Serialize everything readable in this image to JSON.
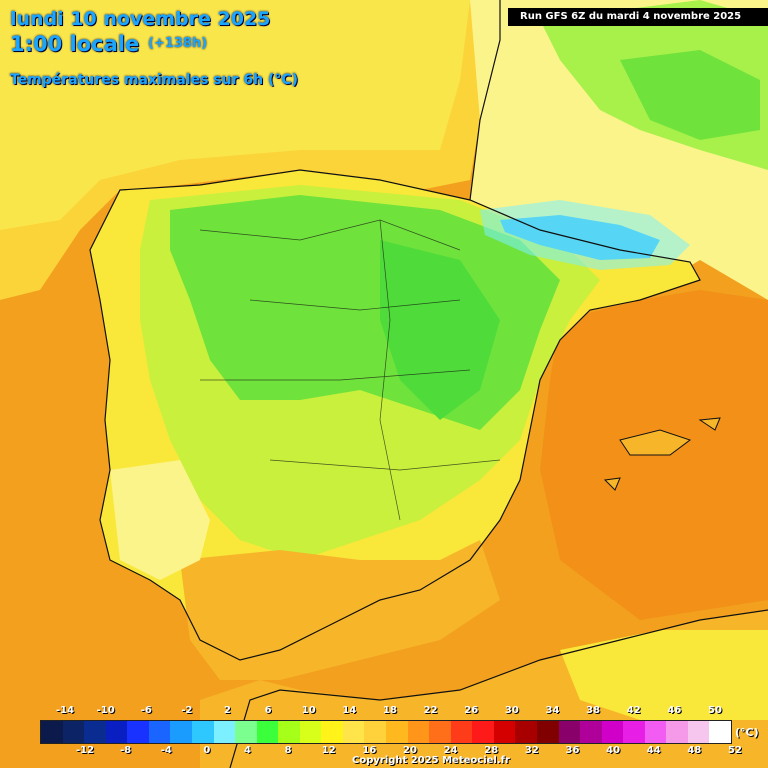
{
  "header": {
    "date": "lundi 10 novembre 2025",
    "time": "1:00 locale",
    "offset": "(+138h)",
    "subtitle": "Températures maximales sur 6h (°C)",
    "run": "Run GFS 6Z du mardi 4 novembre 2025"
  },
  "legend": {
    "unit": "(°C)",
    "top_labels": [
      "-14",
      "-10",
      "-6",
      "-2",
      "2",
      "6",
      "10",
      "14",
      "18",
      "22",
      "26",
      "30",
      "34",
      "38",
      "42",
      "46",
      "50"
    ],
    "bottom_labels": [
      "-12",
      "-8",
      "-4",
      "0",
      "4",
      "8",
      "12",
      "16",
      "20",
      "24",
      "28",
      "32",
      "36",
      "40",
      "44",
      "48",
      "52"
    ],
    "colors": [
      "#0b1a4a",
      "#0c2466",
      "#0a2b90",
      "#0a1fc2",
      "#1a32ff",
      "#1a64ff",
      "#1a9cff",
      "#2ec8ff",
      "#7cf0ff",
      "#7bff8f",
      "#3cff3c",
      "#a6ff19",
      "#d8ff19",
      "#fff319",
      "#ffe54a",
      "#ffd23c",
      "#ffb81e",
      "#ff9619",
      "#ff6e19",
      "#ff3c19",
      "#ff1a1a",
      "#d40000",
      "#a80000",
      "#800000",
      "#8a006a",
      "#b0009a",
      "#d000c8",
      "#e61ee6",
      "#f25cf2",
      "#f59ae8",
      "#f7c6ef",
      "#ffffff"
    ]
  },
  "copyright": "Copyright 2025 Meteociel.fr",
  "map_colors": {
    "sea": "#f2a01e",
    "warm": "#f7b62a",
    "mild": "#f9e83a",
    "pale": "#fbf48a",
    "lime": "#c8f03c",
    "green": "#6fe23c",
    "cold": "#2ab4e6",
    "coast": "#111111"
  }
}
